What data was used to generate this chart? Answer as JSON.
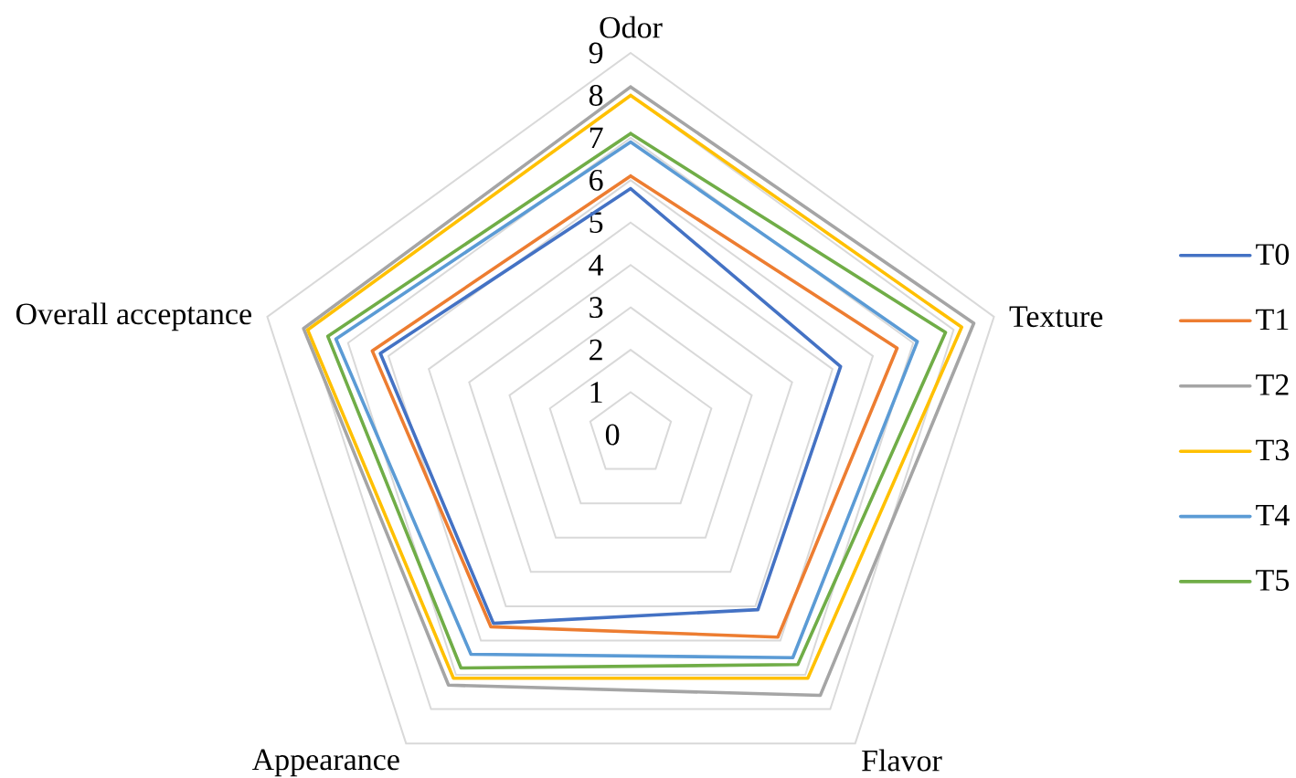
{
  "chart_data": {
    "type": "radar",
    "categories": [
      "Odor",
      "Texture",
      "Flavor",
      "Appearance",
      "Overall acceptance"
    ],
    "series": [
      {
        "name": "T0",
        "color": "#4472c4",
        "values": [
          5.8,
          5.2,
          5.1,
          5.5,
          6.2
        ]
      },
      {
        "name": "T1",
        "color": "#ed7d31",
        "values": [
          6.1,
          6.6,
          5.9,
          5.6,
          6.4
        ]
      },
      {
        "name": "T2",
        "color": "#a5a5a5",
        "values": [
          8.2,
          8.5,
          7.6,
          7.3,
          8.1
        ]
      },
      {
        "name": "T3",
        "color": "#ffc000",
        "values": [
          8.0,
          8.2,
          7.1,
          7.1,
          8.0
        ]
      },
      {
        "name": "T4",
        "color": "#5b9bd5",
        "values": [
          6.9,
          7.1,
          6.5,
          6.4,
          7.3
        ]
      },
      {
        "name": "T5",
        "color": "#70ad47",
        "values": [
          7.1,
          7.8,
          6.7,
          6.8,
          7.5
        ]
      }
    ],
    "ylim": [
      0,
      9
    ],
    "yticks": [
      0,
      1,
      2,
      3,
      4,
      5,
      6,
      7,
      8,
      9
    ],
    "grid": true,
    "legend": "right"
  }
}
